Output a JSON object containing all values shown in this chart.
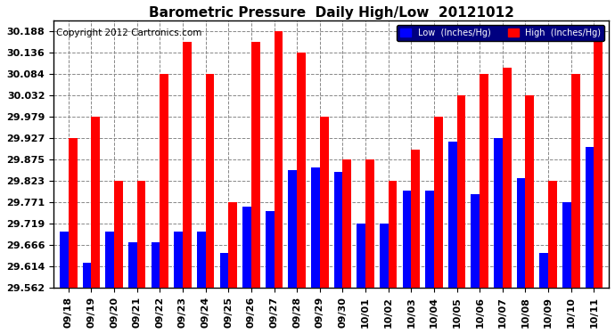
{
  "title": "Barometric Pressure  Daily High/Low  20121012",
  "copyright": "Copyright 2012 Cartronics.com",
  "legend_low": "Low  (Inches/Hg)",
  "legend_high": "High  (Inches/Hg)",
  "dates": [
    "09/18",
    "09/19",
    "09/20",
    "09/21",
    "09/22",
    "09/23",
    "09/24",
    "09/25",
    "09/26",
    "09/27",
    "09/28",
    "09/29",
    "09/30",
    "10/01",
    "10/02",
    "10/03",
    "10/04",
    "10/05",
    "10/06",
    "10/07",
    "10/08",
    "10/09",
    "10/10",
    "10/11"
  ],
  "low_values": [
    29.7,
    29.623,
    29.7,
    29.672,
    29.672,
    29.7,
    29.7,
    29.648,
    29.76,
    29.75,
    29.85,
    29.855,
    29.845,
    29.719,
    29.719,
    29.8,
    29.8,
    29.919,
    29.79,
    29.927,
    29.83,
    29.648,
    29.771,
    29.905
  ],
  "high_values": [
    29.927,
    29.979,
    29.823,
    29.823,
    30.084,
    30.162,
    30.084,
    29.771,
    30.162,
    30.188,
    30.136,
    29.979,
    29.875,
    29.875,
    29.823,
    29.9,
    29.979,
    30.032,
    30.084,
    30.1,
    30.032,
    29.823,
    30.084,
    30.188
  ],
  "ymin": 29.562,
  "ymax": 30.214,
  "yticks": [
    29.562,
    29.614,
    29.666,
    29.719,
    29.771,
    29.823,
    29.875,
    29.927,
    29.979,
    30.032,
    30.084,
    30.136,
    30.188
  ],
  "bar_color_low": "#0000ff",
  "bar_color_high": "#ff0000",
  "bg_color": "#ffffff",
  "grid_color": "#888888",
  "title_fontsize": 11,
  "copyright_fontsize": 7.5,
  "tick_fontsize": 8,
  "bar_width": 0.38
}
